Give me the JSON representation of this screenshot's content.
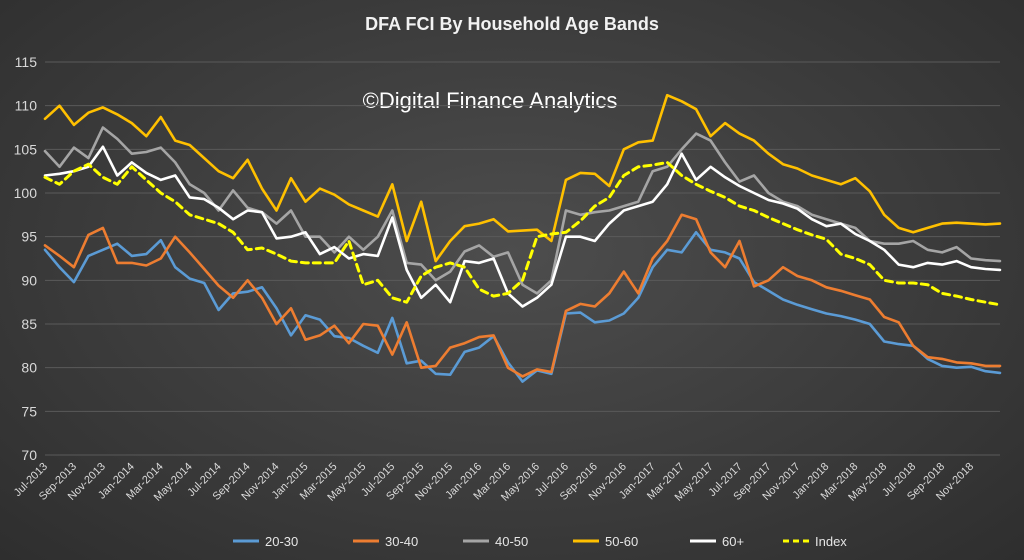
{
  "chart_data": {
    "type": "line",
    "title": "DFA FCI By Household Age Bands",
    "watermark": "©Digital Finance Analytics",
    "xlabel": "",
    "ylabel": "",
    "ylim": [
      70,
      115
    ],
    "yticks": [
      "70",
      "75",
      "80",
      "85",
      "90",
      "95",
      "100",
      "105",
      "110",
      "115"
    ],
    "grid": true,
    "legend_position": "bottom",
    "x_tick_labels": [
      "Jul-2013",
      "Sep-2013",
      "Nov-2013",
      "Jan-2014",
      "Mar-2014",
      "May-2014",
      "Jul-2014",
      "Sep-2014",
      "Nov-2014",
      "Jan-2015",
      "Mar-2015",
      "May-2015",
      "Jul-2015",
      "Sep-2015",
      "Nov-2015",
      "Jan-2016",
      "Mar-2016",
      "May-2016",
      "Jul-2016",
      "Sep-2016",
      "Nov-2016",
      "Jan-2017",
      "Mar-2017",
      "May-2017",
      "Jul-2017",
      "Sep-2017",
      "Nov-2017",
      "Jan-2018",
      "Mar-2018",
      "May-2018",
      "Jul-2018",
      "Sep-2018",
      "Nov-2018"
    ],
    "series": [
      {
        "name": "20-30",
        "color": "#5b9bd5",
        "dashed": false,
        "values": [
          93.5,
          91.5,
          89.8,
          92.8,
          93.5,
          94.2,
          92.8,
          93.0,
          94.6,
          91.5,
          90.2,
          89.7,
          86.6,
          88.5,
          88.7,
          89.2,
          86.8,
          83.7,
          86.0,
          85.5,
          83.6,
          83.4,
          82.5,
          81.7,
          85.7,
          80.5,
          80.8,
          79.3,
          79.2,
          81.8,
          82.3,
          83.6,
          80.6,
          78.4,
          79.7,
          79.3,
          86.2,
          86.3,
          85.2,
          85.4,
          86.2,
          88.0,
          91.5,
          93.5,
          93.2,
          95.5,
          93.5,
          93.2,
          92.5,
          89.8,
          88.8,
          87.8,
          87.2,
          86.7,
          86.2,
          85.9,
          85.5,
          85.0,
          83.0,
          82.7,
          82.5,
          81.0,
          80.2,
          80.0,
          80.1,
          79.6,
          79.4
        ]
      },
      {
        "name": "30-40",
        "color": "#ed7d31",
        "dashed": false,
        "values": [
          94.0,
          92.8,
          91.5,
          95.2,
          96.0,
          92.0,
          92.0,
          91.7,
          92.5,
          95.0,
          93.2,
          91.3,
          89.4,
          88.0,
          90.0,
          88.0,
          85.0,
          86.8,
          83.2,
          83.7,
          84.8,
          82.8,
          85.0,
          84.8,
          81.5,
          85.2,
          80.0,
          80.2,
          82.3,
          82.8,
          83.5,
          83.7,
          80.0,
          79.0,
          79.8,
          79.5,
          86.5,
          87.3,
          87.0,
          88.5,
          91.0,
          88.5,
          92.5,
          94.5,
          97.5,
          97.0,
          93.2,
          91.5,
          94.5,
          89.3,
          90.0,
          91.5,
          90.5,
          90.0,
          89.2,
          88.8,
          88.3,
          87.8,
          85.8,
          85.2,
          82.5,
          81.2,
          81.0,
          80.6,
          80.5,
          80.2,
          80.2
        ]
      },
      {
        "name": "40-50",
        "color": "#a5a5a5",
        "dashed": false,
        "values": [
          104.8,
          103.0,
          105.2,
          104.0,
          107.5,
          106.2,
          104.5,
          104.7,
          105.2,
          103.5,
          101.0,
          100.0,
          98.0,
          100.3,
          98.3,
          97.8,
          96.5,
          98.0,
          95.0,
          95.0,
          93.2,
          95.0,
          93.5,
          95.0,
          98.0,
          92.0,
          91.8,
          90.0,
          91.0,
          93.3,
          94.0,
          92.7,
          93.2,
          89.5,
          88.5,
          90.0,
          98.0,
          97.5,
          97.8,
          98.0,
          98.5,
          99.0,
          102.5,
          103.0,
          105.0,
          106.8,
          106.0,
          103.5,
          101.3,
          102.0,
          100.0,
          99.0,
          98.5,
          97.5,
          97.0,
          96.5,
          96.0,
          94.5,
          94.2,
          94.2,
          94.5,
          93.5,
          93.2,
          93.8,
          92.5,
          92.3,
          92.2
        ]
      },
      {
        "name": "50-60",
        "color": "#ffc000",
        "dashed": false,
        "values": [
          108.5,
          110.0,
          107.8,
          109.2,
          109.8,
          109.0,
          108.0,
          106.5,
          108.7,
          106.0,
          105.5,
          104.0,
          102.5,
          101.7,
          103.8,
          100.5,
          98.0,
          101.7,
          99.0,
          100.5,
          99.8,
          98.7,
          98.0,
          97.3,
          101.0,
          94.5,
          99.0,
          92.2,
          94.5,
          96.2,
          96.5,
          97.0,
          95.6,
          95.7,
          95.8,
          94.5,
          101.5,
          102.3,
          102.2,
          100.8,
          105.0,
          105.8,
          106.0,
          111.2,
          110.5,
          109.6,
          106.5,
          108.0,
          106.8,
          106.0,
          104.5,
          103.3,
          102.8,
          102.0,
          101.5,
          101.0,
          101.7,
          100.2,
          97.5,
          96.0,
          95.5,
          96.0,
          96.5,
          96.6,
          96.5,
          96.4,
          96.5
        ]
      },
      {
        "name": "60+",
        "color": "#ffffff",
        "dashed": false,
        "values": [
          102.0,
          102.2,
          102.5,
          103.0,
          105.3,
          102.0,
          103.5,
          102.3,
          101.5,
          102.0,
          99.5,
          99.3,
          98.3,
          97.0,
          98.0,
          97.8,
          94.8,
          95.0,
          95.5,
          93.0,
          93.8,
          92.5,
          93.0,
          92.8,
          97.2,
          91.2,
          88.0,
          89.5,
          87.5,
          92.2,
          92.0,
          92.5,
          88.5,
          87.0,
          88.0,
          89.5,
          95.0,
          95.0,
          94.5,
          96.5,
          98.0,
          98.5,
          99.0,
          101.0,
          104.5,
          101.5,
          103.0,
          101.8,
          100.8,
          100.0,
          99.2,
          98.8,
          98.2,
          97.0,
          96.2,
          96.5,
          95.3,
          94.5,
          93.5,
          91.8,
          91.5,
          92.0,
          91.8,
          92.2,
          91.5,
          91.3,
          91.2
        ]
      },
      {
        "name": "Index",
        "color": "#ffff00",
        "dashed": true,
        "values": [
          101.8,
          101.0,
          102.5,
          103.3,
          101.8,
          101.0,
          103.0,
          101.5,
          100.0,
          99.0,
          97.5,
          97.0,
          96.5,
          95.5,
          93.5,
          93.7,
          93.0,
          92.2,
          92.0,
          92.0,
          92.0,
          94.5,
          89.5,
          90.0,
          88.0,
          87.5,
          90.5,
          91.5,
          92.0,
          91.5,
          89.0,
          88.2,
          88.5,
          90.0,
          95.0,
          95.3,
          95.5,
          96.8,
          98.5,
          99.5,
          102.0,
          103.0,
          103.2,
          103.5,
          102.0,
          101.0,
          100.2,
          99.5,
          98.5,
          98.0,
          97.2,
          96.5,
          95.8,
          95.2,
          94.7,
          93.0,
          92.5,
          91.8,
          90.0,
          89.7,
          89.7,
          89.5,
          88.5,
          88.2,
          87.8,
          87.5,
          87.2
        ]
      }
    ]
  }
}
